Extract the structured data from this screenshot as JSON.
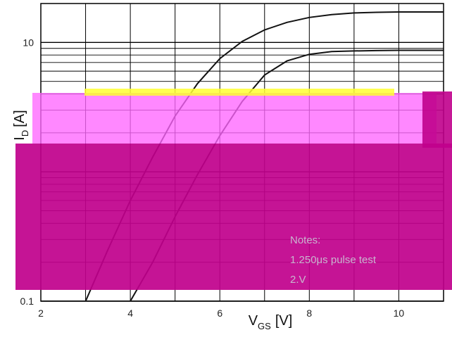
{
  "colors": {
    "grid": "#000000",
    "curve": "#111111",
    "overlay_band": "#ff66ff",
    "overlay_block": "#c0008c",
    "overlay_yellow": "#ffff33",
    "overlay_text": "#d9b0d9"
  },
  "chart_data": {
    "type": "line",
    "xlabel_main": "V",
    "xlabel_sub": "GS",
    "xlabel_unit": "[V]",
    "ylabel_main": "I",
    "ylabel_sub": "D",
    "ylabel_unit": "[A]",
    "x_scale": "linear",
    "y_scale": "log",
    "xlim": [
      2,
      11
    ],
    "ylim": [
      0.1,
      20
    ],
    "x_ticks": [
      "2",
      "4",
      "6",
      "8",
      "10"
    ],
    "y_ticks": [
      "0.1",
      "10"
    ],
    "grid": true,
    "series": [
      {
        "x": [
          3.0,
          3.5,
          4.0,
          4.5,
          5.0,
          5.5,
          6.0,
          6.5,
          7.0,
          7.5,
          8.0,
          8.5,
          9.0,
          9.5,
          10.0,
          10.5,
          11.0
        ],
        "y": [
          0.1,
          0.25,
          0.6,
          1.3,
          2.7,
          4.8,
          7.5,
          10.2,
          12.5,
          14.3,
          15.6,
          16.4,
          16.9,
          17.1,
          17.2,
          17.2,
          17.2
        ]
      },
      {
        "x": [
          4.0,
          4.5,
          5.0,
          5.5,
          6.0,
          6.5,
          7.0,
          7.5,
          8.0,
          8.5,
          9.0,
          9.5,
          10.0,
          10.5,
          11.0
        ],
        "y": [
          0.1,
          0.2,
          0.45,
          0.95,
          1.9,
          3.5,
          5.6,
          7.2,
          8.1,
          8.5,
          8.6,
          8.65,
          8.7,
          8.7,
          8.7
        ]
      }
    ]
  },
  "notes": [
    "Notes:",
    "1.250μs pulse test",
    "2.V"
  ]
}
